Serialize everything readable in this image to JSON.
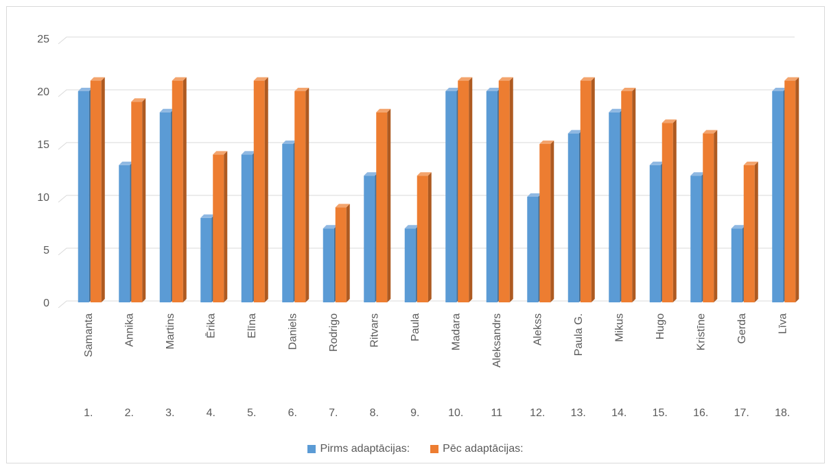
{
  "chart_data": {
    "type": "bar",
    "categories": [
      "Samanta",
      "Annika",
      "Martins",
      "Ērika",
      "Elīna",
      "Daniels",
      "Rodrigo",
      "Ritvars",
      "Paula",
      "Madara",
      "Aleksandrs",
      "Alekss",
      "Paula G.",
      "Mikus",
      "Hugo",
      "Kristīne",
      "Gerda",
      "Līva"
    ],
    "numbers": [
      "1.",
      "2.",
      "3.",
      "4.",
      "5.",
      "6.",
      "7.",
      "8.",
      "9.",
      "10.",
      "11",
      "12.",
      "13.",
      "14.",
      "15.",
      "16.",
      "17.",
      "18."
    ],
    "series": [
      {
        "name": "Pirms adaptācijas:",
        "color": "#5b9bd5",
        "values": [
          20,
          13,
          18,
          8,
          14,
          15,
          7,
          12,
          7,
          20,
          20,
          10,
          16,
          18,
          13,
          12,
          7,
          20
        ]
      },
      {
        "name": "Pēc adaptācijas:",
        "color": "#ed7d31",
        "values": [
          21,
          19,
          21,
          14,
          21,
          20,
          9,
          18,
          12,
          21,
          21,
          15,
          21,
          20,
          17,
          16,
          13,
          21
        ]
      }
    ],
    "y_ticks": [
      "0",
      "5",
      "10",
      "15",
      "20",
      "25"
    ],
    "ylim": [
      0,
      25
    ],
    "grid": true,
    "legend_position": "bottom"
  }
}
